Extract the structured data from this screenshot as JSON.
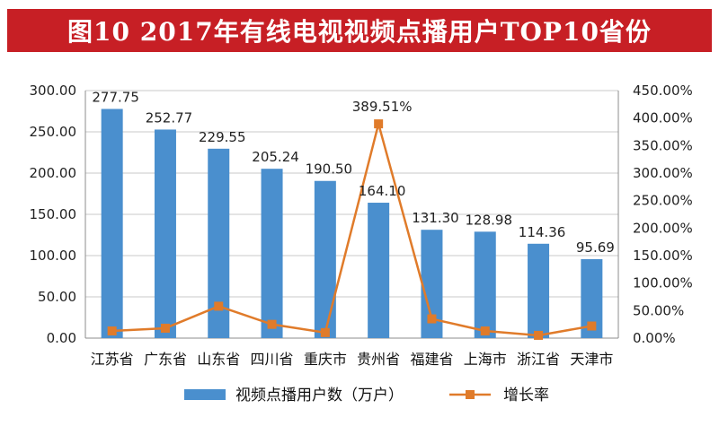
{
  "header": {
    "title": "图10  2017年有线电视视频点播用户TOP10省份"
  },
  "colors": {
    "banner": "#c71f25",
    "bar": "#4a8fce",
    "line": "#e07b2a",
    "grid": "#c8c8c8"
  },
  "chart_data": {
    "type": "bar",
    "title": "图10  2017年有线电视视频点播用户TOP10省份",
    "categories": [
      "江苏省",
      "广东省",
      "山东省",
      "四川省",
      "重庆市",
      "贵州省",
      "福建省",
      "上海市",
      "浙江省",
      "天津市"
    ],
    "series": [
      {
        "name": "视频点播用户数（万户）",
        "type": "bar",
        "axis": "left",
        "values": [
          277.75,
          252.77,
          229.55,
          205.24,
          190.5,
          164.1,
          131.3,
          128.98,
          114.36,
          95.69
        ],
        "labels": [
          "277.75",
          "252.77",
          "229.55",
          "205.24",
          "190.50",
          "164.10",
          "131.30",
          "128.98",
          "114.36",
          "95.69"
        ]
      },
      {
        "name": "增长率",
        "type": "line",
        "axis": "right",
        "values": [
          13,
          18,
          58,
          25,
          10,
          389.51,
          35,
          13,
          5,
          22
        ],
        "point_label": {
          "index": 5,
          "text": "389.51%"
        }
      }
    ],
    "y_left": {
      "min": 0,
      "max": 300,
      "step": 50,
      "ticks": [
        "0.00",
        "50.00",
        "100.00",
        "150.00",
        "200.00",
        "250.00",
        "300.00"
      ]
    },
    "y_right": {
      "min": 0,
      "max": 450,
      "step": 50,
      "ticks": [
        "0.00%",
        "50.00%",
        "100.00%",
        "150.00%",
        "200.00%",
        "250.00%",
        "300.00%",
        "350.00%",
        "400.00%",
        "450.00%"
      ]
    },
    "grid": true,
    "legend_position": "bottom"
  }
}
